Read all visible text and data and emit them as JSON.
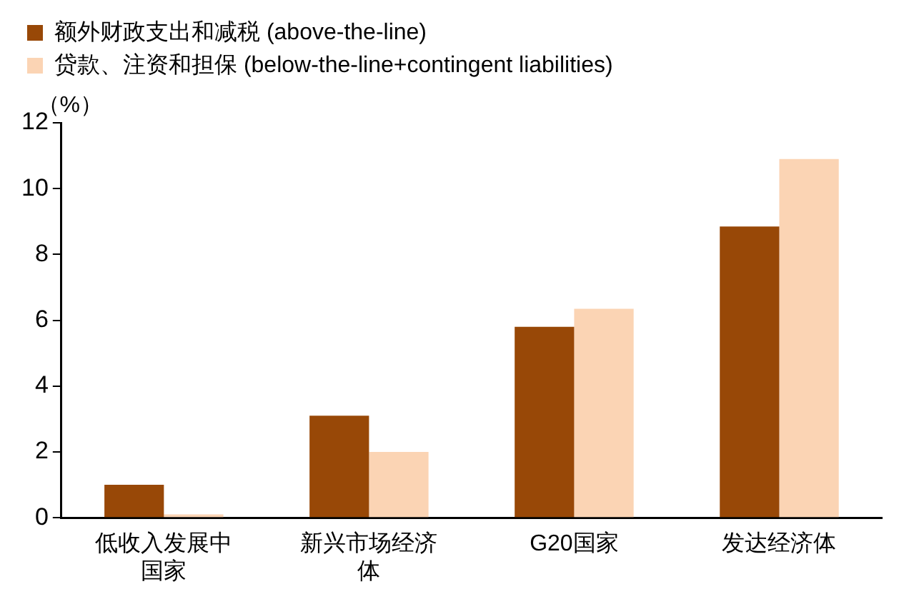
{
  "chart_data": {
    "type": "bar",
    "ylabel": "（%）",
    "categories": [
      "低收入发展中国家",
      "新兴市场经济体",
      "G20国家",
      "发达经济体"
    ],
    "series": [
      {
        "name": "额外财政支出和减税 (above-the-line)",
        "color": "#984807",
        "values": [
          1.0,
          3.1,
          5.8,
          8.85
        ]
      },
      {
        "name": "贷款、注资和担保 (below-the-line+contingent liabilities)",
        "color": "#fbd4b4",
        "values": [
          0.1,
          2.0,
          6.35,
          10.9
        ]
      }
    ],
    "ylim": [
      0,
      12
    ],
    "yticks": [
      0,
      2,
      4,
      6,
      8,
      10,
      12
    ],
    "grid": false,
    "legend": "top left"
  }
}
